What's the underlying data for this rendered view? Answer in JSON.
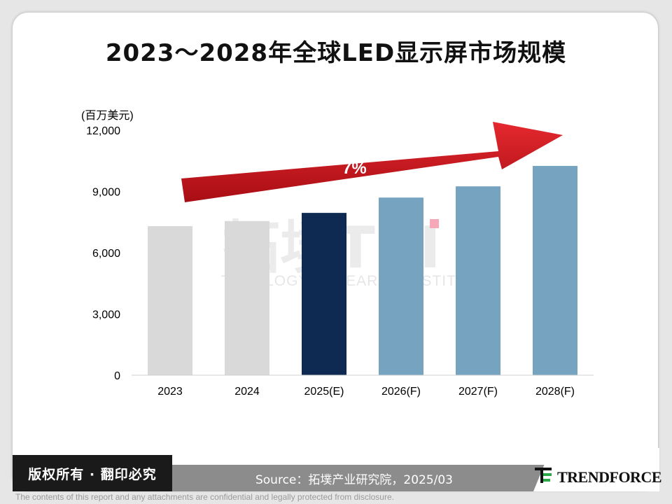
{
  "title": "2023～2028年全球LED显示屏市场规模",
  "chart_data": {
    "type": "bar",
    "unit_label": "(百万美元)",
    "categories": [
      "2023",
      "2024",
      "2025(E)",
      "2026(F)",
      "2027(F)",
      "2028(F)"
    ],
    "values": [
      7300,
      7550,
      7950,
      8700,
      9250,
      10250
    ],
    "bar_colors": [
      "#d9d9d9",
      "#d9d9d9",
      "#0e2a52",
      "#75a3c0",
      "#75a3c0",
      "#75a3c0"
    ],
    "ylim": [
      0,
      12000
    ],
    "yticks": [
      0,
      3000,
      6000,
      9000,
      12000
    ],
    "ytick_labels": [
      "0",
      "3,000",
      "6,000",
      "9,000",
      "12,000"
    ],
    "annotation": {
      "text": "7%",
      "color": "#c8141c"
    },
    "grid": false
  },
  "watermark": {
    "cn": "拓墣",
    "en_short": "TRI",
    "en_full": "TOPOLOGY RESEARCH INSTITUTE"
  },
  "footer": {
    "copyright": "版权所有 · 翻印必究",
    "source": "Source：拓墣产业研究院，2025/03",
    "logo_text": "TRENDFORCE",
    "disclaimer": "The contents of this report and any attachments are confidential and legally protected from disclosure."
  }
}
